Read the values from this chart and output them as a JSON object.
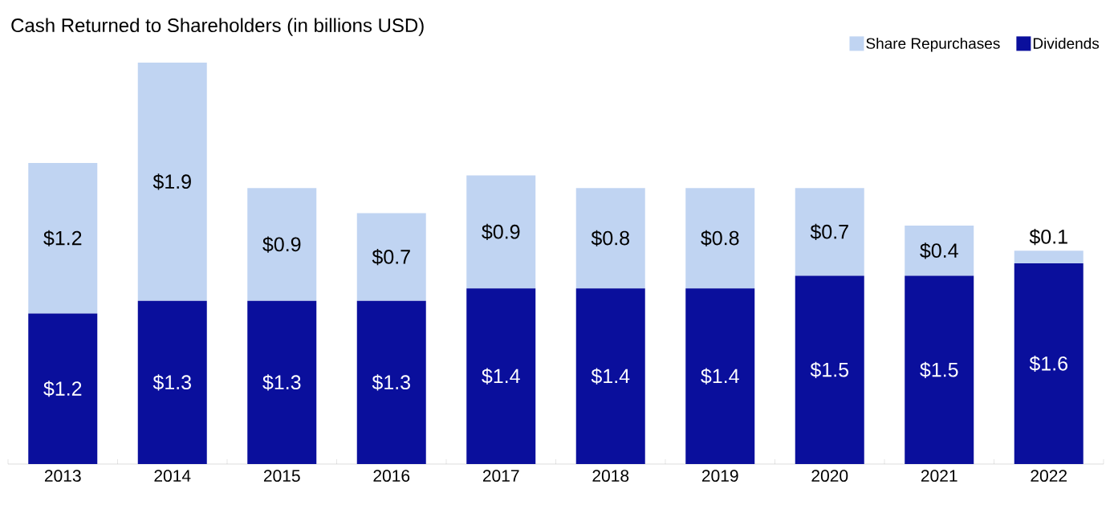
{
  "chart_data": {
    "type": "bar",
    "stacked": true,
    "title": "Cash Returned to Shareholders (in billions USD)",
    "categories": [
      "2013",
      "2014",
      "2015",
      "2016",
      "2017",
      "2018",
      "2019",
      "2020",
      "2021",
      "2022"
    ],
    "series": [
      {
        "name": "Dividends",
        "color": "#0a0f9c",
        "values": [
          1.2,
          1.3,
          1.3,
          1.3,
          1.4,
          1.4,
          1.4,
          1.5,
          1.5,
          1.6
        ],
        "value_labels": [
          "$1.2",
          "$1.3",
          "$1.3",
          "$1.3",
          "$1.4",
          "$1.4",
          "$1.4",
          "$1.5",
          "$1.5",
          "$1.6"
        ]
      },
      {
        "name": "Share Repurchases",
        "color": "#c0d4f2",
        "values": [
          1.2,
          1.9,
          0.9,
          0.7,
          0.9,
          0.8,
          0.8,
          0.7,
          0.4,
          0.1
        ],
        "value_labels": [
          "$1.2",
          "$1.9",
          "$0.9",
          "$0.7",
          "$0.9",
          "$0.8",
          "$0.8",
          "$0.7",
          "$0.4",
          "$0.1"
        ]
      }
    ],
    "legend": "top right"
  }
}
